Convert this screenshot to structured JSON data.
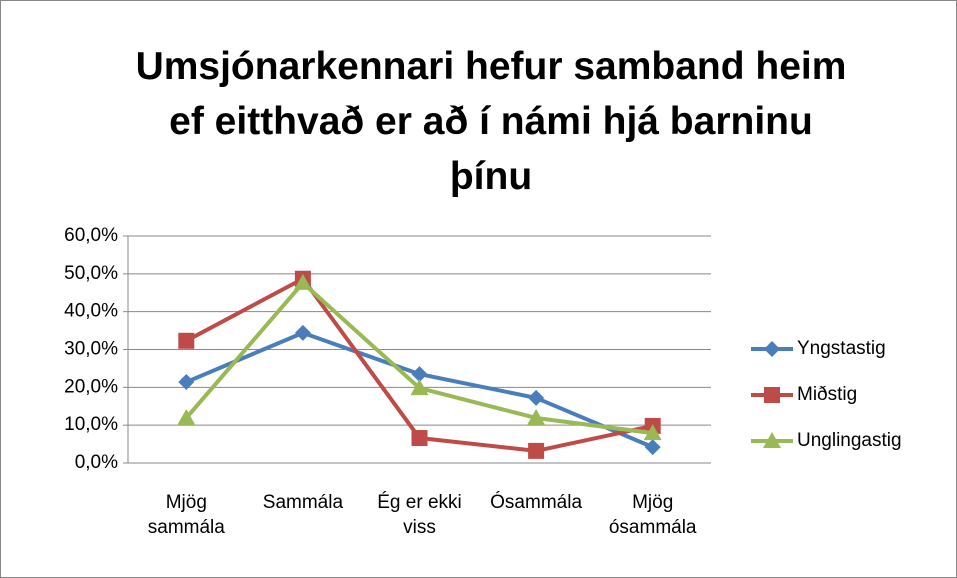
{
  "chart_data": {
    "type": "line",
    "title": "Umsjónarkennari hefur samband heim ef eitthvað er að í námi hjá barninu þínu",
    "categories": [
      "Mjög sammála",
      "Sammála",
      "Ég er ekki viss",
      "Ósammála",
      "Mjög ósammála"
    ],
    "series": [
      {
        "name": "Yngstastig",
        "color": "#4a7ebb",
        "marker": "diamond",
        "values": [
          21.4,
          34.4,
          23.5,
          17.2,
          4.2
        ]
      },
      {
        "name": "Miðstig",
        "color": "#be4b48",
        "marker": "square",
        "values": [
          32.3,
          48.7,
          6.6,
          3.2,
          9.8
        ]
      },
      {
        "name": "Unglingastig",
        "color": "#98b954",
        "marker": "triangle",
        "values": [
          11.9,
          47.6,
          19.8,
          11.9,
          7.9
        ]
      }
    ],
    "ylim": [
      0,
      60
    ],
    "yticks": [
      {
        "value": 0,
        "label": "0,0%"
      },
      {
        "value": 10,
        "label": "10,0%"
      },
      {
        "value": 20,
        "label": "20,0%"
      },
      {
        "value": 30,
        "label": "30,0%"
      },
      {
        "value": 40,
        "label": "40,0%"
      },
      {
        "value": 50,
        "label": "50,0%"
      },
      {
        "value": 60,
        "label": "60,0%"
      }
    ],
    "grid": true,
    "legend": "right"
  }
}
